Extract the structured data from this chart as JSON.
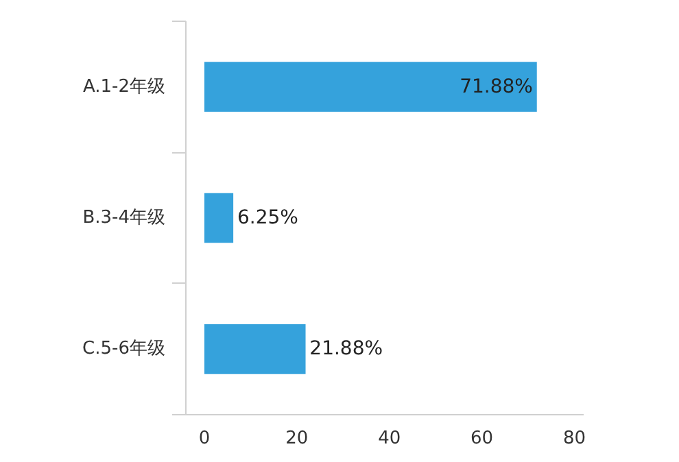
{
  "chart_data": {
    "type": "bar",
    "orientation": "horizontal",
    "categories": [
      "A.1-2年级",
      "B.3-4年级",
      "C.5-6年级"
    ],
    "values": [
      71.88,
      6.25,
      21.88
    ],
    "color": "#35a2dc",
    "value_labels": [
      "71.88%",
      "6.25%",
      "21.88%"
    ],
    "xlim": [
      -4,
      82
    ],
    "xticks": [
      0,
      20,
      40,
      60,
      80
    ],
    "grid": false
  }
}
